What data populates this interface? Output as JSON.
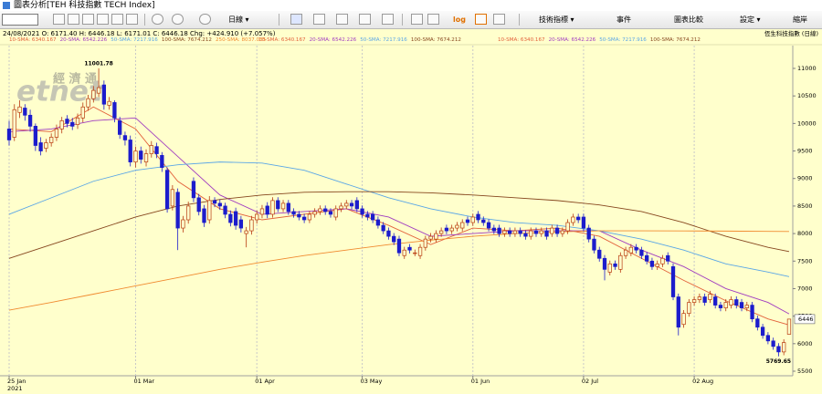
{
  "ui": {
    "window_title": "圖表分析[TEH 科技指數 TECH Index]",
    "toolbar": {
      "period": "日線 ▾",
      "log": "log",
      "indicators": "技術指標 ▾",
      "events": "事件",
      "compare": "圖表比較",
      "settings": "設定 ▾",
      "minimize": "縮岸"
    },
    "watermark": {
      "chinese": "經 濟 通",
      "english": "etnet"
    }
  },
  "chart_data": {
    "type": "candlestick",
    "info": "24/08/2021  O: 6171.40  H: 6446.18  L: 6171.01  C: 6446.18  Chg: +424.910 (+7.057%)",
    "subtitle": "恆生科技指數 (日線)",
    "year_label": "2021",
    "categories": [
      "25 Jan",
      null,
      null,
      null,
      null,
      null,
      null,
      null,
      null,
      null,
      null,
      null,
      null,
      null,
      null,
      null,
      null,
      null,
      null,
      null,
      null,
      null,
      null,
      null,
      "01 Mar",
      null,
      null,
      null,
      null,
      null,
      null,
      null,
      null,
      null,
      null,
      null,
      null,
      null,
      null,
      null,
      null,
      null,
      null,
      null,
      null,
      null,
      null,
      "01 Apr",
      null,
      null,
      null,
      null,
      null,
      null,
      null,
      null,
      null,
      null,
      null,
      null,
      null,
      null,
      null,
      null,
      null,
      null,
      null,
      "03 May",
      null,
      null,
      null,
      null,
      null,
      null,
      null,
      null,
      null,
      null,
      null,
      null,
      null,
      null,
      null,
      null,
      null,
      null,
      null,
      null,
      "01 Jun",
      null,
      null,
      null,
      null,
      null,
      null,
      null,
      null,
      null,
      null,
      null,
      null,
      null,
      null,
      null,
      null,
      null,
      null,
      null,
      null,
      "02 Jul",
      null,
      null,
      null,
      null,
      null,
      null,
      null,
      null,
      null,
      null,
      null,
      null,
      null,
      null,
      null,
      null,
      null,
      null,
      null,
      null,
      "02 Aug",
      null,
      null,
      null,
      null,
      null,
      null,
      null,
      null,
      null,
      null,
      null,
      null,
      null,
      null,
      null,
      null,
      null,
      null
    ],
    "open": [
      9900,
      9750,
      10200,
      10280,
      10150,
      9950,
      9650,
      9550,
      9650,
      9750,
      9900,
      10080,
      10020,
      9980,
      10100,
      10300,
      10450,
      10550,
      10700,
      10330,
      10380,
      10050,
      9780,
      9700,
      9300,
      9500,
      9300,
      9450,
      9580,
      9420,
      9150,
      8500,
      8750,
      8100,
      8250,
      8950,
      8650,
      8450,
      8250,
      8600,
      8550,
      8500,
      8350,
      8400,
      8250,
      8000,
      8050,
      8250,
      8350,
      8500,
      8350,
      8600,
      8450,
      8550,
      8400,
      8350,
      8300,
      8250,
      8350,
      8400,
      8450,
      8400,
      8300,
      8450,
      8500,
      8550,
      8600,
      8450,
      8350,
      8350,
      8250,
      8150,
      8050,
      7950,
      7900,
      7600,
      7750,
      7650,
      7600,
      7750,
      7900,
      7900,
      8000,
      8100,
      8050,
      8100,
      8100,
      8250,
      8200,
      8350,
      8250,
      8200,
      8100,
      8100,
      8000,
      8050,
      8000,
      8050,
      8000,
      7950,
      8050,
      8000,
      8050,
      8000,
      8100,
      8000,
      8050,
      8200,
      8300,
      8300,
      8100,
      7900,
      7700,
      7550,
      7300,
      7450,
      7350,
      7600,
      7650,
      7750,
      7700,
      7600,
      7500,
      7400,
      7450,
      7600,
      7400,
      6850,
      6350,
      6550,
      6750,
      6800,
      6850,
      6800,
      6850,
      6700,
      6650,
      6700,
      6800,
      6750,
      6650,
      6700,
      6450,
      6300,
      6150,
      6050,
      5950,
      5850,
      6171.4
    ],
    "high": [
      10050,
      10350,
      10420,
      10350,
      10250,
      10000,
      9750,
      9720,
      9820,
      9980,
      10120,
      10150,
      10100,
      10180,
      10380,
      10520,
      10680,
      11001.78,
      10780,
      10480,
      10420,
      10120,
      9850,
      9780,
      9580,
      9580,
      9530,
      9680,
      9650,
      9480,
      9200,
      8880,
      8820,
      8320,
      8580,
      9020,
      8720,
      8520,
      8680,
      8660,
      8620,
      8560,
      8420,
      8470,
      8320,
      8120,
      8320,
      8420,
      8520,
      8570,
      8660,
      8660,
      8610,
      8610,
      8460,
      8410,
      8360,
      8410,
      8460,
      8510,
      8510,
      8460,
      8510,
      8560,
      8610,
      8610,
      8660,
      8510,
      8410,
      8410,
      8310,
      8210,
      8110,
      8010,
      7960,
      7760,
      7810,
      7710,
      7810,
      7960,
      8010,
      8060,
      8110,
      8160,
      8160,
      8210,
      8260,
      8310,
      8360,
      8410,
      8310,
      8260,
      8160,
      8160,
      8110,
      8110,
      8110,
      8110,
      8060,
      8110,
      8110,
      8110,
      8110,
      8160,
      8160,
      8110,
      8260,
      8360,
      8360,
      8360,
      8160,
      7960,
      7760,
      7610,
      7510,
      7510,
      7660,
      7760,
      7810,
      7810,
      7760,
      7660,
      7560,
      7510,
      7610,
      7660,
      7460,
      6910,
      6610,
      6810,
      6860,
      6910,
      6910,
      6960,
      6910,
      6760,
      6810,
      6860,
      6860,
      6810,
      6760,
      6760,
      6510,
      6360,
      6210,
      6110,
      6010,
      6080,
      6446.18
    ],
    "low": [
      9600,
      9680,
      10100,
      10050,
      9850,
      9500,
      9420,
      9480,
      9580,
      9680,
      9820,
      9930,
      9880,
      9900,
      10020,
      10230,
      10380,
      10480,
      10250,
      10250,
      10020,
      9720,
      9600,
      9220,
      9200,
      9270,
      9220,
      9380,
      9370,
      9120,
      8380,
      8420,
      7700,
      8020,
      8180,
      8570,
      8330,
      8120,
      8180,
      8480,
      8430,
      8280,
      8130,
      8070,
      8020,
      7750,
      7980,
      8180,
      8280,
      8280,
      8290,
      8390,
      8390,
      8340,
      8290,
      8240,
      8190,
      8190,
      8290,
      8340,
      8340,
      8290,
      8240,
      8390,
      8440,
      8440,
      8390,
      8290,
      8240,
      8190,
      8090,
      7990,
      7890,
      7790,
      7590,
      7540,
      7640,
      7590,
      7540,
      7690,
      7840,
      7840,
      7940,
      7990,
      7990,
      8040,
      8040,
      8140,
      8140,
      8190,
      8140,
      8040,
      7990,
      7940,
      7940,
      7940,
      7940,
      7940,
      7890,
      7890,
      7940,
      7940,
      7890,
      7940,
      7940,
      7940,
      7990,
      8140,
      8190,
      8040,
      7840,
      7640,
      7490,
      7150,
      7240,
      7340,
      7290,
      7540,
      7590,
      7640,
      7540,
      7440,
      7340,
      7340,
      7390,
      7440,
      6790,
      6150,
      6290,
      6490,
      6690,
      6740,
      6690,
      6740,
      6640,
      6590,
      6590,
      6640,
      6640,
      6590,
      6590,
      6390,
      6240,
      6090,
      5990,
      5890,
      5769.65,
      5790,
      6171.01
    ],
    "close": [
      9700,
      10250,
      10300,
      10150,
      9950,
      9600,
      9500,
      9650,
      9750,
      9900,
      10050,
      10000,
      9950,
      10100,
      10300,
      10450,
      10600,
      10650,
      10350,
      10400,
      10100,
      9800,
      9700,
      9300,
      9500,
      9350,
      9450,
      9600,
      9450,
      9200,
      8450,
      8800,
      8100,
      8250,
      8500,
      8650,
      8400,
      8200,
      8600,
      8550,
      8500,
      8350,
      8200,
      8150,
      8100,
      8050,
      8250,
      8350,
      8450,
      8350,
      8600,
      8450,
      8550,
      8400,
      8350,
      8300,
      8250,
      8350,
      8400,
      8450,
      8400,
      8350,
      8450,
      8500,
      8550,
      8500,
      8450,
      8350,
      8300,
      8250,
      8150,
      8050,
      7950,
      7850,
      7650,
      7700,
      7700,
      7650,
      7750,
      7900,
      7950,
      8000,
      8050,
      8050,
      8100,
      8150,
      8200,
      8200,
      8300,
      8250,
      8200,
      8100,
      8050,
      8000,
      8050,
      8000,
      8050,
      8000,
      7950,
      8050,
      8000,
      8050,
      7950,
      8100,
      8000,
      8050,
      8200,
      8300,
      8250,
      8100,
      7900,
      7700,
      7550,
      7350,
      7450,
      7400,
      7600,
      7700,
      7750,
      7700,
      7600,
      7500,
      7400,
      7450,
      7550,
      7500,
      6850,
      6300,
      6550,
      6750,
      6800,
      6850,
      6750,
      6900,
      6700,
      6650,
      6750,
      6800,
      6700,
      6650,
      6700,
      6450,
      6300,
      6150,
      6050,
      5950,
      5850,
      6020,
      6446.18
    ],
    "up_color": "#b83a10",
    "down_color": "#1c1ccc",
    "series": [
      {
        "name": "10-SMA",
        "legend_label": "10-SMA: 6340.167",
        "color": "#e2603a",
        "x": [
          0,
          8,
          16,
          24,
          32,
          40,
          48,
          56,
          64,
          72,
          80,
          88,
          96,
          104,
          112,
          120,
          128,
          136,
          144,
          148
        ],
        "values": [
          9900,
          9850,
          10300,
          9900,
          8950,
          8450,
          8250,
          8350,
          8450,
          8150,
          7800,
          8100,
          8050,
          8100,
          7950,
          7550,
          7150,
          6780,
          6450,
          6340.167
        ]
      },
      {
        "name": "20-SMA",
        "legend_label": "20-SMA: 6542.226",
        "color": "#a03cc0",
        "x": [
          0,
          8,
          16,
          24,
          32,
          40,
          48,
          56,
          64,
          72,
          80,
          88,
          96,
          104,
          112,
          120,
          128,
          136,
          144,
          148
        ],
        "values": [
          9850,
          9900,
          10050,
          10100,
          9400,
          8700,
          8350,
          8400,
          8450,
          8300,
          7950,
          8000,
          8050,
          8050,
          8050,
          7700,
          7400,
          7000,
          6750,
          6542.226
        ]
      },
      {
        "name": "50-SMA",
        "legend_label": "50-SMA: 7217.916",
        "color": "#5aa6e6",
        "x": [
          0,
          8,
          16,
          24,
          32,
          40,
          48,
          56,
          64,
          72,
          80,
          88,
          96,
          104,
          112,
          120,
          128,
          136,
          144,
          148
        ],
        "values": [
          8350,
          8650,
          8950,
          9150,
          9250,
          9300,
          9280,
          9150,
          8900,
          8650,
          8450,
          8300,
          8200,
          8150,
          8050,
          7900,
          7700,
          7450,
          7300,
          7217.916
        ]
      },
      {
        "name": "100-SMA",
        "legend_label": "100-SMA: 7674.212",
        "color": "#86461e",
        "x": [
          0,
          8,
          16,
          24,
          32,
          40,
          48,
          56,
          64,
          72,
          80,
          88,
          96,
          104,
          112,
          120,
          128,
          136,
          144,
          148
        ],
        "values": [
          7550,
          7800,
          8050,
          8300,
          8500,
          8620,
          8700,
          8750,
          8760,
          8760,
          8740,
          8700,
          8650,
          8600,
          8520,
          8400,
          8200,
          7950,
          7750,
          7674.212
        ]
      },
      {
        "name": "250-SMA",
        "legend_label": "250-SMA: 8037.035",
        "color": "#f08a30",
        "x": [
          0,
          8,
          16,
          24,
          32,
          40,
          48,
          56,
          64,
          72,
          80,
          88,
          96,
          104,
          112,
          120,
          128,
          136,
          144,
          148
        ],
        "values": [
          6610,
          6750,
          6900,
          7050,
          7200,
          7350,
          7480,
          7600,
          7700,
          7800,
          7880,
          7950,
          8000,
          8030,
          8050,
          8050,
          8048,
          8045,
          8040,
          8037.035
        ]
      }
    ],
    "legend_groups": [
      [
        0,
        1,
        2,
        3,
        4
      ],
      [
        0,
        1,
        2,
        3
      ],
      [
        0,
        1,
        2,
        3
      ]
    ],
    "annotations": [
      {
        "label": "11001.78",
        "value": 11001.78,
        "at": "high"
      },
      {
        "label": "5769.65",
        "value": 5769.65,
        "at": "low"
      }
    ],
    "last_price": {
      "label": "6446",
      "value": 6446.18
    },
    "ylim": [
      5318,
      11414
    ],
    "yticks": [
      5500,
      6000,
      6500,
      7000,
      7500,
      8000,
      8500,
      9000,
      9500,
      10000,
      10500,
      11000
    ],
    "xgrid": true,
    "ygrid": false
  }
}
